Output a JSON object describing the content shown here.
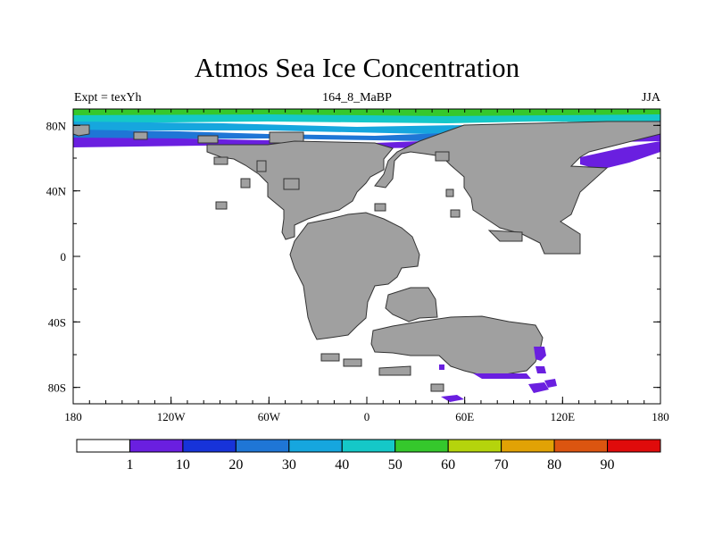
{
  "title": "Atmos Sea Ice Concentration",
  "left_label": "Expt = texYh",
  "center_label": "164_8_MaBP",
  "right_label": "JJA",
  "map": {
    "longitude_ticks": [
      "180",
      "120W",
      "60W",
      "0",
      "60E",
      "120E",
      "180"
    ],
    "latitude_ticks": [
      "80N",
      "40N",
      "0",
      "40S",
      "80S"
    ],
    "land_color": "#a0a0a0",
    "ocean_color": "#ffffff"
  },
  "colorbar": {
    "colors": [
      "#ffffff",
      "#6a1fe0",
      "#1733d9",
      "#1f76d6",
      "#16a6de",
      "#15c8c8",
      "#35c82c",
      "#b5d40c",
      "#e1a205",
      "#dc5510",
      "#e00b0b"
    ],
    "labels": [
      "1",
      "10",
      "20",
      "30",
      "40",
      "50",
      "60",
      "70",
      "80",
      "90"
    ]
  }
}
